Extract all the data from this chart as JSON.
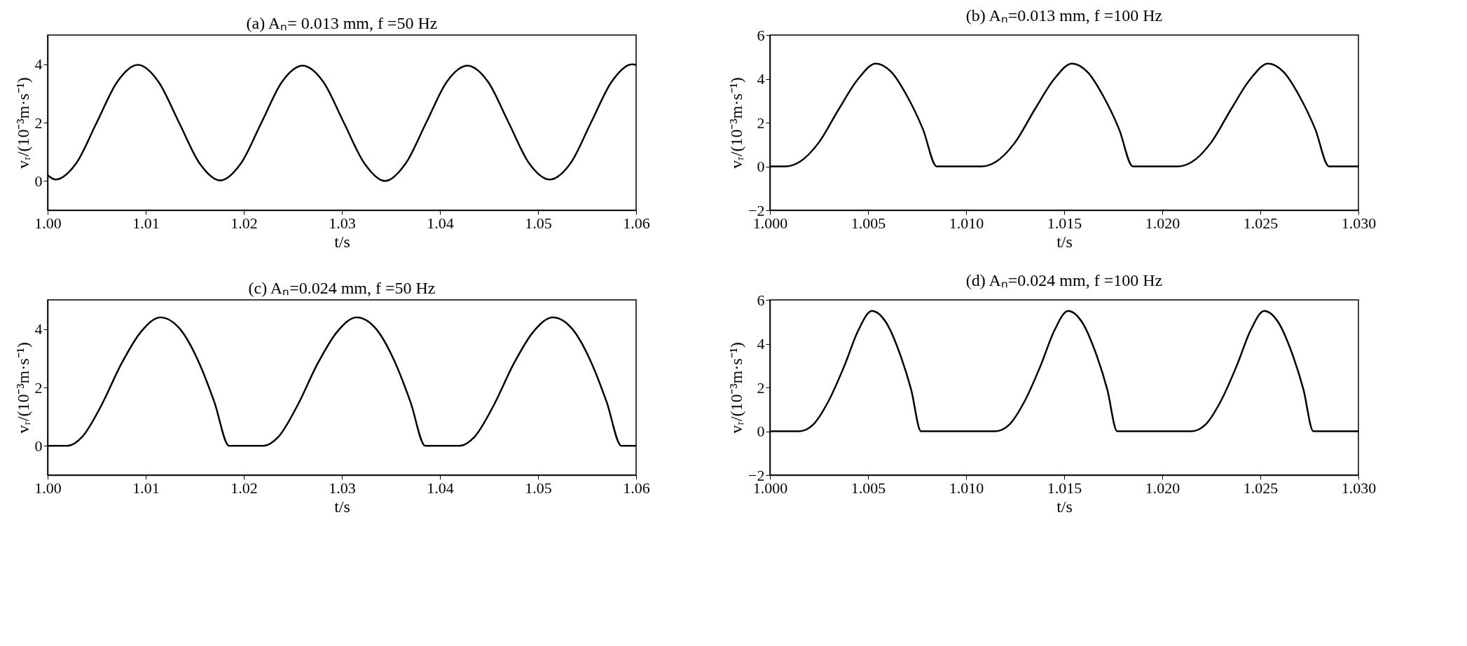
{
  "chart_data": [
    {
      "type": "line",
      "title": "(a) Aₙ= 0.013 mm, f =50 Hz",
      "xlabel": "t/s",
      "ylabel": "vᵣ/(10⁻³m·s⁻¹)",
      "grid": false,
      "line_style": "solid",
      "marker": "none",
      "xlim": [
        1.0,
        1.06
      ],
      "xticks": [
        {
          "value": 1.0,
          "label": "1.00"
        },
        {
          "value": 1.01,
          "label": "1.01"
        },
        {
          "value": 1.02,
          "label": "1.02"
        },
        {
          "value": 1.03,
          "label": "1.03"
        },
        {
          "value": 1.04,
          "label": "1.04"
        },
        {
          "value": 1.05,
          "label": "1.05"
        },
        {
          "value": 1.06,
          "label": "1.06"
        }
      ],
      "ylim": [
        -1,
        5
      ],
      "yticks": [
        0,
        2,
        4
      ],
      "series": [
        {
          "color": "#000000",
          "x": [
            1.0,
            1.0008,
            1.0029,
            1.005,
            1.0071,
            1.0092,
            1.0113,
            1.0134,
            1.0155,
            1.0176,
            1.0197,
            1.0218,
            1.0239,
            1.026,
            1.0281,
            1.0302,
            1.0323,
            1.0344,
            1.0365,
            1.0386,
            1.0407,
            1.0428,
            1.0449,
            1.047,
            1.0491,
            1.0512,
            1.0533,
            1.0554,
            1.0575,
            1.0596,
            1.06
          ],
          "values": [
            0.2,
            0.05,
            0.6,
            2.0,
            3.4,
            3.98,
            3.4,
            2.0,
            0.6,
            0.02,
            0.6,
            2.0,
            3.4,
            3.95,
            3.4,
            2.0,
            0.6,
            0.0,
            0.6,
            2.0,
            3.4,
            3.95,
            3.4,
            2.0,
            0.6,
            0.05,
            0.6,
            2.0,
            3.4,
            4.0,
            3.98
          ]
        }
      ]
    },
    {
      "type": "line",
      "title": "(b) Aₙ=0.013 mm, f =100 Hz",
      "xlabel": "t/s",
      "ylabel": "vᵣ/(10⁻³m·s⁻¹)",
      "grid": false,
      "line_style": "solid",
      "marker": "none",
      "xlim": [
        1.0,
        1.03
      ],
      "xticks": [
        {
          "value": 1.0,
          "label": "1.000"
        },
        {
          "value": 1.005,
          "label": "1.005"
        },
        {
          "value": 1.01,
          "label": "1.010"
        },
        {
          "value": 1.015,
          "label": "1.015"
        },
        {
          "value": 1.02,
          "label": "1.020"
        },
        {
          "value": 1.025,
          "label": "1.025"
        },
        {
          "value": 1.03,
          "label": "1.030"
        }
      ],
      "ylim": [
        -2,
        6
      ],
      "yticks": [
        {
          "value": -2,
          "label": "−2"
        },
        0,
        2,
        4,
        6
      ],
      "series": [
        {
          "color": "#000000",
          "x": [
            1.0,
            1.0008,
            1.0015,
            1.0025,
            1.0035,
            1.0045,
            1.0054,
            1.0062,
            1.007,
            1.0078,
            1.0085,
            1.0108,
            1.0115,
            1.0125,
            1.0135,
            1.0145,
            1.0154,
            1.0162,
            1.017,
            1.0178,
            1.0185,
            1.0208,
            1.0215,
            1.0225,
            1.0235,
            1.0245,
            1.0254,
            1.0262,
            1.027,
            1.0278,
            1.0285,
            1.03
          ],
          "values": [
            0,
            0,
            0.2,
            1.1,
            2.6,
            4.0,
            4.7,
            4.3,
            3.2,
            1.7,
            0,
            0,
            0.2,
            1.1,
            2.6,
            4.0,
            4.7,
            4.3,
            3.2,
            1.7,
            0,
            0,
            0.2,
            1.1,
            2.6,
            4.0,
            4.7,
            4.3,
            3.2,
            1.7,
            0,
            0
          ]
        }
      ]
    },
    {
      "type": "line",
      "title": "(c) Aₙ=0.024 mm, f =50 Hz",
      "xlabel": "t/s",
      "ylabel": "vᵣ/(10⁻³m·s⁻¹)",
      "grid": false,
      "line_style": "solid",
      "marker": "none",
      "xlim": [
        1.0,
        1.06
      ],
      "xticks": [
        {
          "value": 1.0,
          "label": "1.00"
        },
        {
          "value": 1.01,
          "label": "1.01"
        },
        {
          "value": 1.02,
          "label": "1.02"
        },
        {
          "value": 1.03,
          "label": "1.03"
        },
        {
          "value": 1.04,
          "label": "1.04"
        },
        {
          "value": 1.05,
          "label": "1.05"
        },
        {
          "value": 1.06,
          "label": "1.06"
        }
      ],
      "ylim": [
        -1,
        5
      ],
      "yticks": [
        0,
        2,
        4
      ],
      "series": [
        {
          "color": "#000000",
          "x": [
            1.0,
            1.002,
            1.0035,
            1.0055,
            1.0075,
            1.0095,
            1.0115,
            1.0135,
            1.0155,
            1.017,
            1.0185,
            1.022,
            1.0235,
            1.0255,
            1.0275,
            1.0295,
            1.0315,
            1.0335,
            1.0355,
            1.037,
            1.0385,
            1.042,
            1.0435,
            1.0455,
            1.0475,
            1.0495,
            1.0515,
            1.0535,
            1.0555,
            1.057,
            1.0585,
            1.06
          ],
          "values": [
            0,
            0,
            0.3,
            1.4,
            2.8,
            3.9,
            4.4,
            4.0,
            2.8,
            1.5,
            0,
            0,
            0.3,
            1.4,
            2.8,
            3.9,
            4.4,
            4.0,
            2.8,
            1.5,
            0,
            0,
            0.3,
            1.4,
            2.8,
            3.9,
            4.4,
            4.0,
            2.8,
            1.5,
            0,
            0
          ]
        }
      ]
    },
    {
      "type": "line",
      "title": "(d) Aₙ=0.024 mm, f =100 Hz",
      "xlabel": "t/s",
      "ylabel": "vᵣ/(10⁻³m·s⁻¹)",
      "grid": false,
      "line_style": "solid",
      "marker": "none",
      "xlim": [
        1.0,
        1.03
      ],
      "xticks": [
        {
          "value": 1.0,
          "label": "1.000"
        },
        {
          "value": 1.005,
          "label": "1.005"
        },
        {
          "value": 1.01,
          "label": "1.010"
        },
        {
          "value": 1.015,
          "label": "1.015"
        },
        {
          "value": 1.02,
          "label": "1.020"
        },
        {
          "value": 1.025,
          "label": "1.025"
        },
        {
          "value": 1.03,
          "label": "1.030"
        }
      ],
      "ylim": [
        -2,
        6
      ],
      "yticks": [
        {
          "value": -2,
          "label": "−2"
        },
        0,
        2,
        4,
        6
      ],
      "series": [
        {
          "color": "#000000",
          "x": [
            1.0,
            1.0015,
            1.0022,
            1.003,
            1.0038,
            1.0045,
            1.0052,
            1.0059,
            1.0066,
            1.0072,
            1.0077,
            1.0115,
            1.0122,
            1.013,
            1.0138,
            1.0145,
            1.0152,
            1.0159,
            1.0166,
            1.0172,
            1.0177,
            1.0215,
            1.0222,
            1.023,
            1.0238,
            1.0245,
            1.0252,
            1.0259,
            1.0266,
            1.0272,
            1.0277,
            1.03
          ],
          "values": [
            0,
            0,
            0.3,
            1.4,
            3.0,
            4.6,
            5.5,
            5.0,
            3.6,
            1.9,
            0,
            0,
            0.3,
            1.4,
            3.0,
            4.6,
            5.5,
            5.0,
            3.6,
            1.9,
            0,
            0,
            0.3,
            1.4,
            3.0,
            4.6,
            5.5,
            5.0,
            3.6,
            1.9,
            0,
            0
          ]
        }
      ]
    }
  ]
}
